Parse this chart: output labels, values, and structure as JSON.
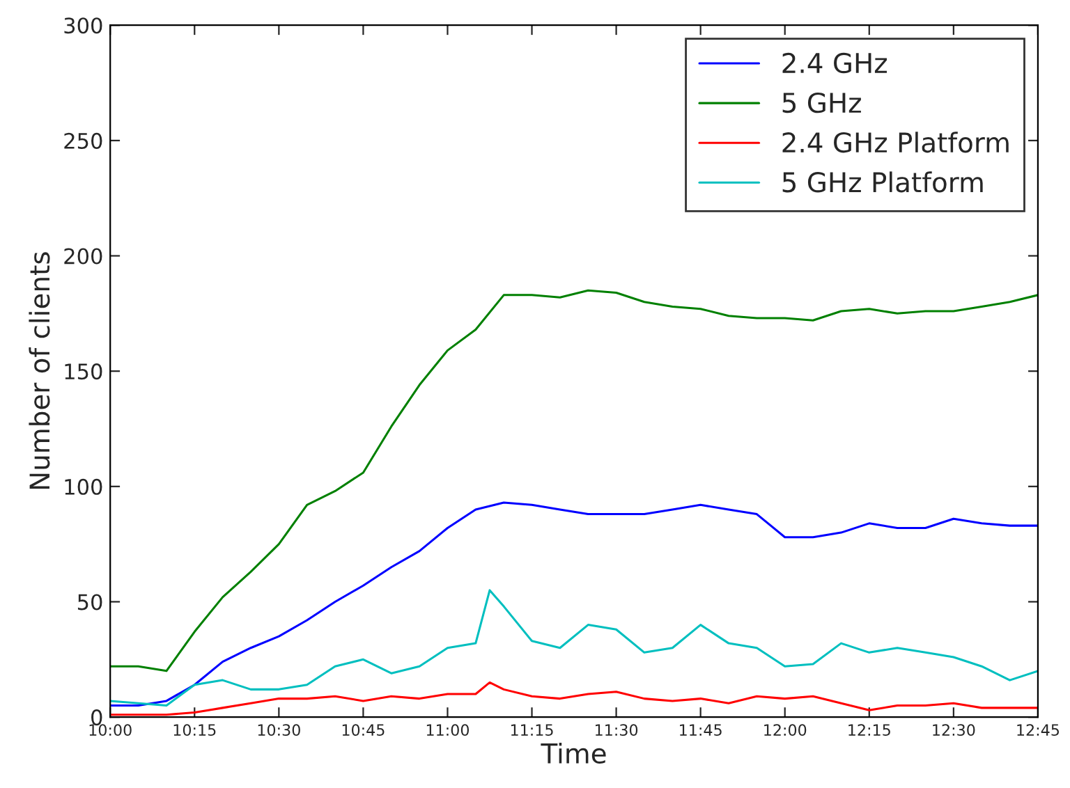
{
  "chart_data": {
    "type": "line",
    "xlabel": "Time",
    "ylabel": "Number of clients",
    "x": [
      10,
      10.0833,
      10.1667,
      10.25,
      10.3333,
      10.4167,
      10.5,
      10.5833,
      10.6667,
      10.75,
      10.8333,
      10.9167,
      11,
      11.0833,
      11.1667,
      11.25,
      11.3333,
      11.4167,
      11.5,
      11.5833,
      11.6667,
      11.75,
      11.8333,
      11.9167,
      12,
      12.0833,
      12.1667,
      12.25,
      12.3333,
      12.4167,
      12.5,
      12.5833,
      12.6667,
      12.75
    ],
    "series": [
      {
        "name": "2.4 GHz",
        "color": "#0000ff",
        "values": [
          5,
          5,
          7,
          14,
          24,
          30,
          35,
          42,
          50,
          57,
          65,
          72,
          82,
          90,
          93,
          92,
          90,
          88,
          88,
          88,
          90,
          92,
          90,
          88,
          78,
          78,
          80,
          84,
          82,
          82,
          86,
          84,
          83,
          83
        ]
      },
      {
        "name": "5 GHz",
        "color": "#008000",
        "values": [
          22,
          22,
          20,
          37,
          52,
          63,
          75,
          92,
          98,
          106,
          126,
          144,
          159,
          168,
          183,
          183,
          182,
          185,
          184,
          180,
          178,
          177,
          174,
          173,
          173,
          172,
          176,
          177,
          175,
          176,
          176,
          178,
          180,
          183
        ]
      },
      {
        "name": "2.4 GHz Platform",
        "color": "#ff0000",
        "x": [
          10,
          10.0833,
          10.1667,
          10.25,
          10.3333,
          10.4167,
          10.5,
          10.5833,
          10.6667,
          10.75,
          10.8333,
          10.9167,
          11,
          11.0833,
          11.125,
          11.1667,
          11.25,
          11.3333,
          11.4167,
          11.5,
          11.5833,
          11.6667,
          11.75,
          11.8333,
          11.9167,
          12,
          12.0833,
          12.1667,
          12.25,
          12.3333,
          12.4167,
          12.5,
          12.5833,
          12.6667,
          12.75
        ],
        "values": [
          1,
          1,
          1,
          2,
          4,
          6,
          8,
          8,
          9,
          7,
          9,
          8,
          10,
          10,
          15,
          12,
          9,
          8,
          10,
          11,
          8,
          7,
          8,
          6,
          9,
          8,
          9,
          6,
          3,
          5,
          5,
          6,
          4,
          4,
          4
        ]
      },
      {
        "name": "5 GHz Platform",
        "color": "#00bfbf",
        "x": [
          10,
          10.0833,
          10.1667,
          10.25,
          10.3333,
          10.4167,
          10.5,
          10.5833,
          10.6667,
          10.75,
          10.8333,
          10.9167,
          11,
          11.0833,
          11.125,
          11.1667,
          11.25,
          11.3333,
          11.4167,
          11.5,
          11.5833,
          11.6667,
          11.75,
          11.8333,
          11.9167,
          12,
          12.0833,
          12.1667,
          12.25,
          12.3333,
          12.4167,
          12.5,
          12.5833,
          12.6667,
          12.75
        ],
        "values": [
          7,
          6,
          5,
          14,
          16,
          12,
          12,
          14,
          22,
          25,
          19,
          22,
          30,
          32,
          55,
          48,
          33,
          30,
          40,
          38,
          28,
          30,
          40,
          32,
          30,
          22,
          23,
          32,
          28,
          30,
          28,
          26,
          22,
          16,
          20
        ]
      }
    ],
    "xlim": [
      10,
      12.75
    ],
    "xticks": [
      {
        "value": 10,
        "label": "10:00"
      },
      {
        "value": 10.25,
        "label": "10:15"
      },
      {
        "value": 10.5,
        "label": "10:30"
      },
      {
        "value": 10.75,
        "label": "10:45"
      },
      {
        "value": 11,
        "label": "11:00"
      },
      {
        "value": 11.25,
        "label": "11:15"
      },
      {
        "value": 11.5,
        "label": "11:30"
      },
      {
        "value": 11.75,
        "label": "11:45"
      },
      {
        "value": 12,
        "label": "12:00"
      },
      {
        "value": 12.25,
        "label": "12:15"
      },
      {
        "value": 12.5,
        "label": "12:30"
      },
      {
        "value": 12.75,
        "label": "12:45"
      }
    ],
    "ylim": [
      0,
      300
    ],
    "yticks": [
      0,
      50,
      100,
      150,
      200,
      250,
      300
    ],
    "legend": "top right",
    "grid": false,
    "marker": "none",
    "line_style": "solid"
  }
}
